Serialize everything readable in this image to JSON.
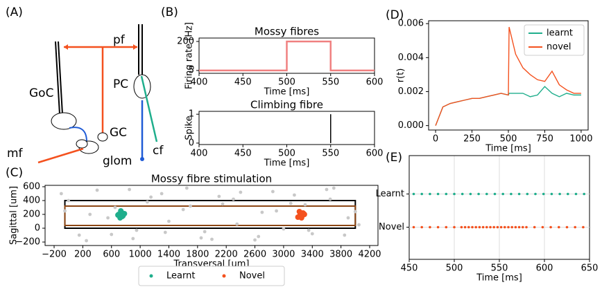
{
  "panel_a": {
    "label": "(A)",
    "pf": "pf",
    "goc": "GoC",
    "pc": "PC",
    "gc": "GC",
    "mf": "mf",
    "glom": "glom",
    "cf": "cf"
  },
  "chart_data": [
    {
      "type": "line",
      "panel": "(B)",
      "title": "Mossy fibres",
      "xlabel": "Time [ms]",
      "ylabel": "Firing rate [Hz]",
      "x": [
        400,
        500,
        500,
        550,
        550,
        600
      ],
      "values": [
        5,
        5,
        200,
        200,
        5,
        5
      ],
      "color": "#f08080",
      "xlim": [
        400,
        600
      ],
      "xticks": [
        400,
        450,
        500,
        550,
        600
      ],
      "ylim": [
        -14,
        223
      ],
      "yticks": [
        5,
        200
      ],
      "grid": false
    },
    {
      "type": "spike",
      "title": "Climbing fibre",
      "xlabel": "Time [ms]",
      "ylabel": "Spike",
      "x": [
        550
      ],
      "values": [
        1
      ],
      "color": "#000000",
      "xlim": [
        400,
        600
      ],
      "xticks": [
        400,
        450,
        500,
        550,
        600
      ],
      "ylim": [
        -0.05,
        1.1
      ],
      "yticks": [
        0,
        1
      ],
      "grid": false
    },
    {
      "type": "scatter",
      "panel": "(C)",
      "title": "Mossy fibre stimulation",
      "xlabel": "Transversal [um]",
      "ylabel": "Sagittal [um]",
      "xlim": [
        -326,
        4316
      ],
      "xticks": [
        {
          "value": -200,
          "label": "−200"
        },
        200,
        600,
        1000,
        1400,
        1800,
        2200,
        2600,
        3000,
        3400,
        3800,
        4200
      ],
      "ylim": [
        -250,
        620
      ],
      "yticks": [
        {
          "value": -200,
          "label": "−200"
        },
        0,
        200,
        400,
        600
      ],
      "grid": false,
      "legend": "below",
      "series": [
        {
          "color": "#c8c8c8",
          "x": [
            -100,
            150,
            400,
            650,
            900,
            1150,
            1400,
            1650,
            1900,
            2150,
            2400,
            2650,
            2900,
            3150,
            3400,
            3650,
            3900,
            4050,
            -50,
            250,
            550,
            850,
            1100,
            1350,
            1600,
            1850,
            2100,
            2350,
            2600,
            2850,
            3100,
            3350,
            3600,
            3850,
            0,
            300,
            600,
            950,
            1300,
            1700,
            2000,
            2300,
            2700,
            3000,
            3300,
            3700,
            4000
          ],
          "values": [
            500,
            -100,
            550,
            300,
            -150,
            450,
            100,
            580,
            -50,
            350,
            520,
            -120,
            250,
            480,
            -80,
            420,
            150,
            50,
            250,
            -180,
            150,
            560,
            380,
            -60,
            270,
            -140,
            460,
            60,
            -170,
            530,
            360,
            -30,
            560,
            -100,
            400,
            200,
            -90,
            -30,
            500,
            320,
            -160,
            420,
            230,
            -10,
            340,
            580,
            240
          ]
        },
        {
          "name": "Learnt",
          "color": "#1fae8c",
          "x": [
            700,
            740,
            760,
            720,
            690,
            780,
            730,
            750
          ],
          "values": [
            200,
            230,
            180,
            150,
            190,
            210,
            250,
            170
          ]
        },
        {
          "name": "Novel",
          "color": "#f4511e",
          "x": [
            3230,
            3270,
            3200,
            3290,
            3250,
            3220,
            3260,
            3280
          ],
          "values": [
            190,
            220,
            160,
            200,
            150,
            240,
            180,
            210
          ]
        }
      ],
      "rects": [
        {
          "x": [
            -50,
            4000
          ],
          "y": [
            0,
            400
          ],
          "color": "#000000"
        },
        {
          "x": [
            -50,
            4000
          ],
          "y": [
            40,
            320
          ],
          "color": "#8b4513"
        }
      ]
    },
    {
      "type": "line",
      "panel": "(D)",
      "xlabel": "Time [ms]",
      "ylabel": "r(t)",
      "legend": "upper right",
      "grid": false,
      "xlim": [
        -48,
        1048
      ],
      "xticks": [
        0,
        250,
        500,
        750,
        1000
      ],
      "ylim": [
        -0.00026,
        0.00617
      ],
      "yticks": [
        {
          "value": 0,
          "label": "0.000"
        },
        {
          "value": 0.002,
          "label": "0.002"
        },
        {
          "value": 0.004,
          "label": "0.004"
        },
        {
          "value": 0.006,
          "label": "0.006"
        }
      ],
      "x": [
        0,
        50,
        100,
        150,
        200,
        250,
        300,
        350,
        400,
        450,
        500,
        505,
        550,
        600,
        650,
        700,
        750,
        800,
        850,
        900,
        950,
        1000
      ],
      "series": [
        {
          "name": "learnt",
          "color": "#1fae8c",
          "values": [
            0,
            0.0011,
            0.0013,
            0.0014,
            0.0015,
            0.0016,
            0.0016,
            0.0017,
            0.0018,
            0.0019,
            0.0018,
            0.0019,
            0.0019,
            0.0019,
            0.0017,
            0.0018,
            0.0023,
            0.0019,
            0.0017,
            0.0019,
            0.0018,
            0.0018
          ]
        },
        {
          "name": "novel",
          "color": "#f4511e",
          "values": [
            0,
            0.0011,
            0.0013,
            0.0014,
            0.0015,
            0.0016,
            0.0016,
            0.0017,
            0.0018,
            0.0019,
            0.0018,
            0.0058,
            0.0042,
            0.0034,
            0.003,
            0.0027,
            0.0026,
            0.0032,
            0.0024,
            0.0021,
            0.0019,
            0.0019
          ]
        }
      ]
    },
    {
      "type": "raster",
      "panel": "(E)",
      "xlabel": "Time [ms]",
      "grid": true,
      "xlim": [
        450,
        650
      ],
      "xticks": [
        450,
        500,
        550,
        600,
        650
      ],
      "series": [
        {
          "name": "Learnt",
          "color": "#1fae8c",
          "x": [
            455,
            464,
            473,
            482,
            491,
            500,
            509,
            518,
            527,
            536,
            545,
            554,
            563,
            572,
            581,
            590,
            599,
            608,
            617,
            626,
            635,
            644
          ]
        },
        {
          "name": "Novel",
          "color": "#f4511e",
          "x": [
            455,
            464,
            473,
            482,
            491,
            500,
            508,
            512,
            516,
            520,
            524,
            528,
            532,
            536,
            540,
            544,
            548,
            552,
            556,
            560,
            564,
            568,
            572,
            576,
            580,
            589,
            598,
            607,
            616,
            625,
            634,
            643
          ]
        }
      ]
    }
  ]
}
